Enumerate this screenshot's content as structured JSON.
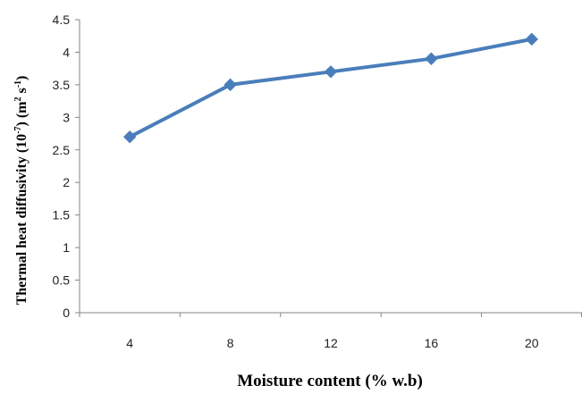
{
  "chart_data": {
    "type": "line",
    "title": "",
    "xlabel": "Moisture content (% w.b)",
    "ylabel": {
      "prefix": "Thermal heat diffusivity (10",
      "exp1": "-7",
      "middle": ") (m",
      "exp2": "2",
      "middle2": " s",
      "exp3": "-1",
      "suffix": ")"
    },
    "categories": [
      "4",
      "8",
      "12",
      "16",
      "20"
    ],
    "y_ticks": [
      "0",
      "0.5",
      "1",
      "1.5",
      "2",
      "2.5",
      "3",
      "3.5",
      "4",
      "4.5"
    ],
    "ylim": [
      0,
      4.5
    ],
    "grid": false,
    "legend": "none",
    "series": [
      {
        "values": [
          2.7,
          3.5,
          3.7,
          3.9,
          4.2
        ],
        "color": "#4a7ebb",
        "marker": "diamond"
      }
    ]
  }
}
